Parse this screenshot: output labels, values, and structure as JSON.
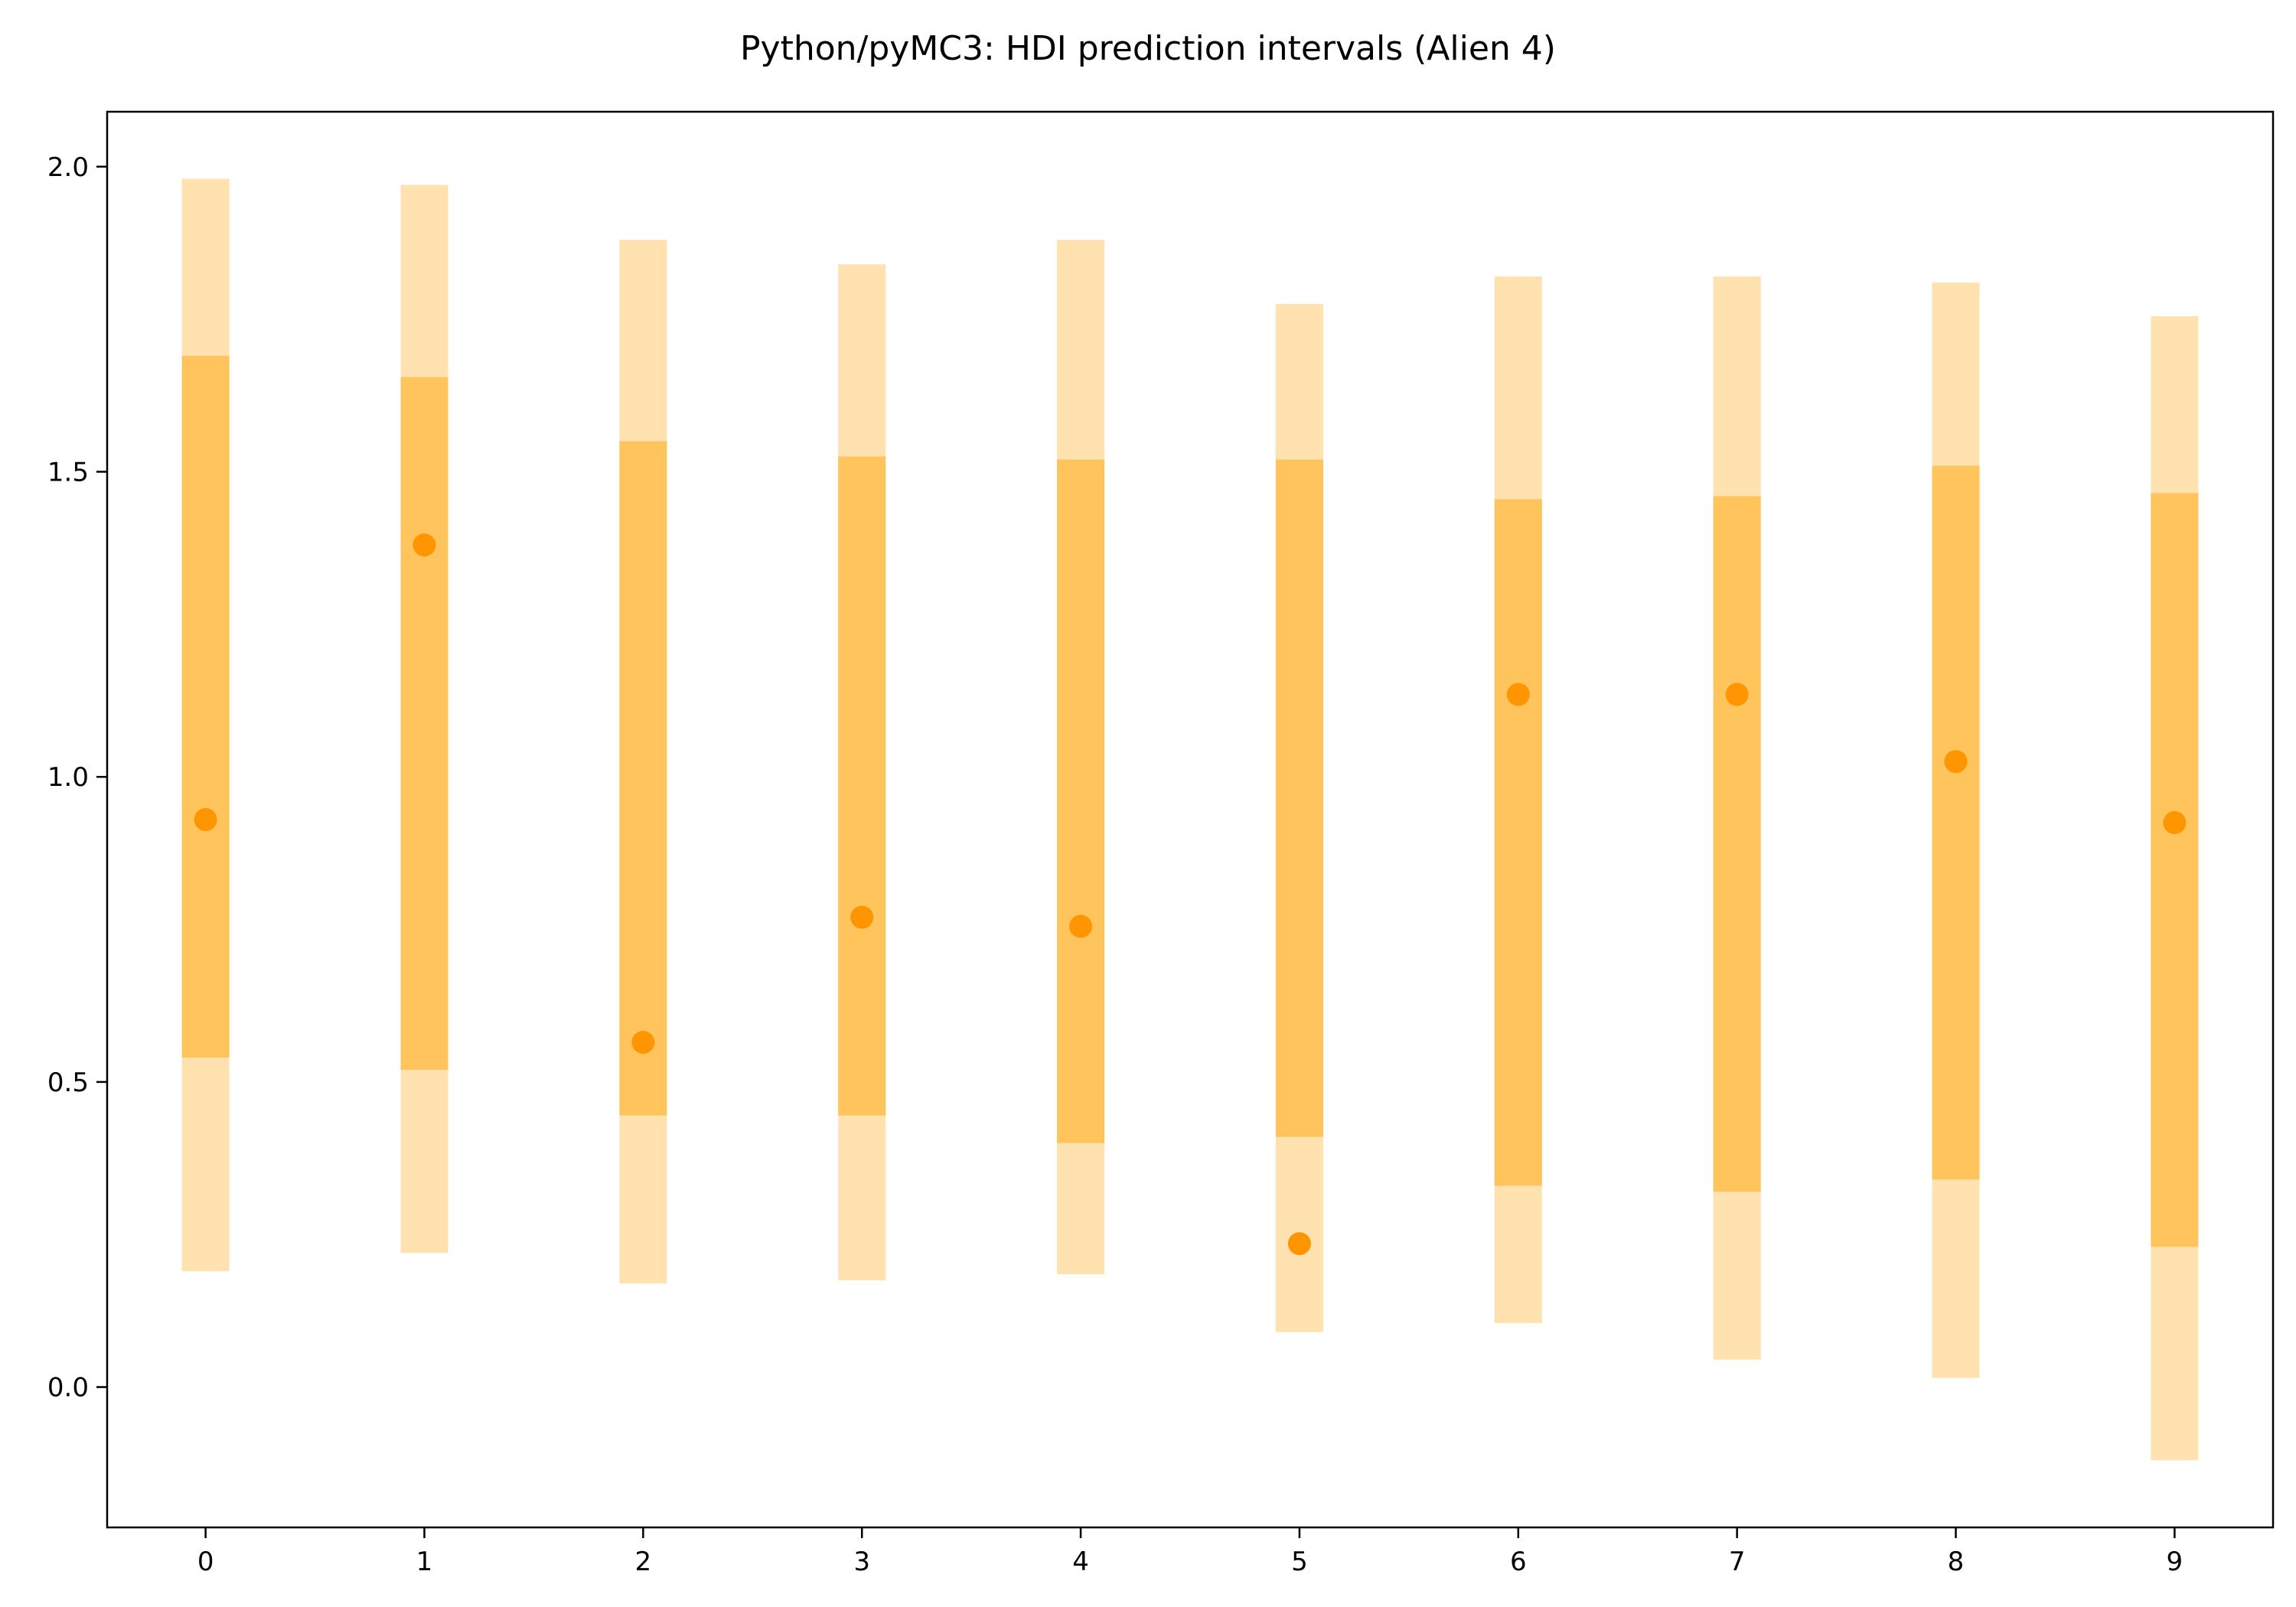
{
  "chart_data": {
    "type": "interval",
    "title": "Python/pyMC3: HDI prediction intervals (Alien 4)",
    "xlabel": "",
    "ylabel": "",
    "xlim": [
      -0.45,
      9.45
    ],
    "ylim": [
      -0.23,
      2.09
    ],
    "x_ticks": [
      "0",
      "1",
      "2",
      "3",
      "4",
      "5",
      "6",
      "7",
      "8",
      "9"
    ],
    "y_ticks": [
      "0.0",
      "0.5",
      "1.0",
      "1.5",
      "2.0"
    ],
    "y_tick_values": [
      0.0,
      0.5,
      1.0,
      1.5,
      2.0
    ],
    "grid": false,
    "legend": "none",
    "colors": {
      "outer_interval": "#ffe2b0",
      "inner_interval": "#ffc45c",
      "point": "#ff9500"
    },
    "points": [
      {
        "x": 0,
        "y": 0.93,
        "inner": [
          0.54,
          1.69
        ],
        "outer": [
          0.19,
          1.98
        ]
      },
      {
        "x": 1,
        "y": 1.38,
        "inner": [
          0.52,
          1.655
        ],
        "outer": [
          0.22,
          1.97
        ]
      },
      {
        "x": 2,
        "y": 0.565,
        "inner": [
          0.445,
          1.55
        ],
        "outer": [
          0.17,
          1.88
        ]
      },
      {
        "x": 3,
        "y": 0.77,
        "inner": [
          0.445,
          1.525
        ],
        "outer": [
          0.175,
          1.84
        ]
      },
      {
        "x": 4,
        "y": 0.755,
        "inner": [
          0.4,
          1.52
        ],
        "outer": [
          0.185,
          1.88
        ]
      },
      {
        "x": 5,
        "y": 0.235,
        "inner": [
          0.41,
          1.52
        ],
        "outer": [
          0.09,
          1.775
        ]
      },
      {
        "x": 6,
        "y": 1.135,
        "inner": [
          0.33,
          1.455
        ],
        "outer": [
          0.105,
          1.82
        ]
      },
      {
        "x": 7,
        "y": 1.135,
        "inner": [
          0.32,
          1.46
        ],
        "outer": [
          0.045,
          1.82
        ]
      },
      {
        "x": 8,
        "y": 1.025,
        "inner": [
          0.34,
          1.51
        ],
        "outer": [
          0.015,
          1.81
        ]
      },
      {
        "x": 9,
        "y": 0.925,
        "inner": [
          0.23,
          1.465
        ],
        "outer": [
          -0.12,
          1.755
        ]
      }
    ]
  }
}
